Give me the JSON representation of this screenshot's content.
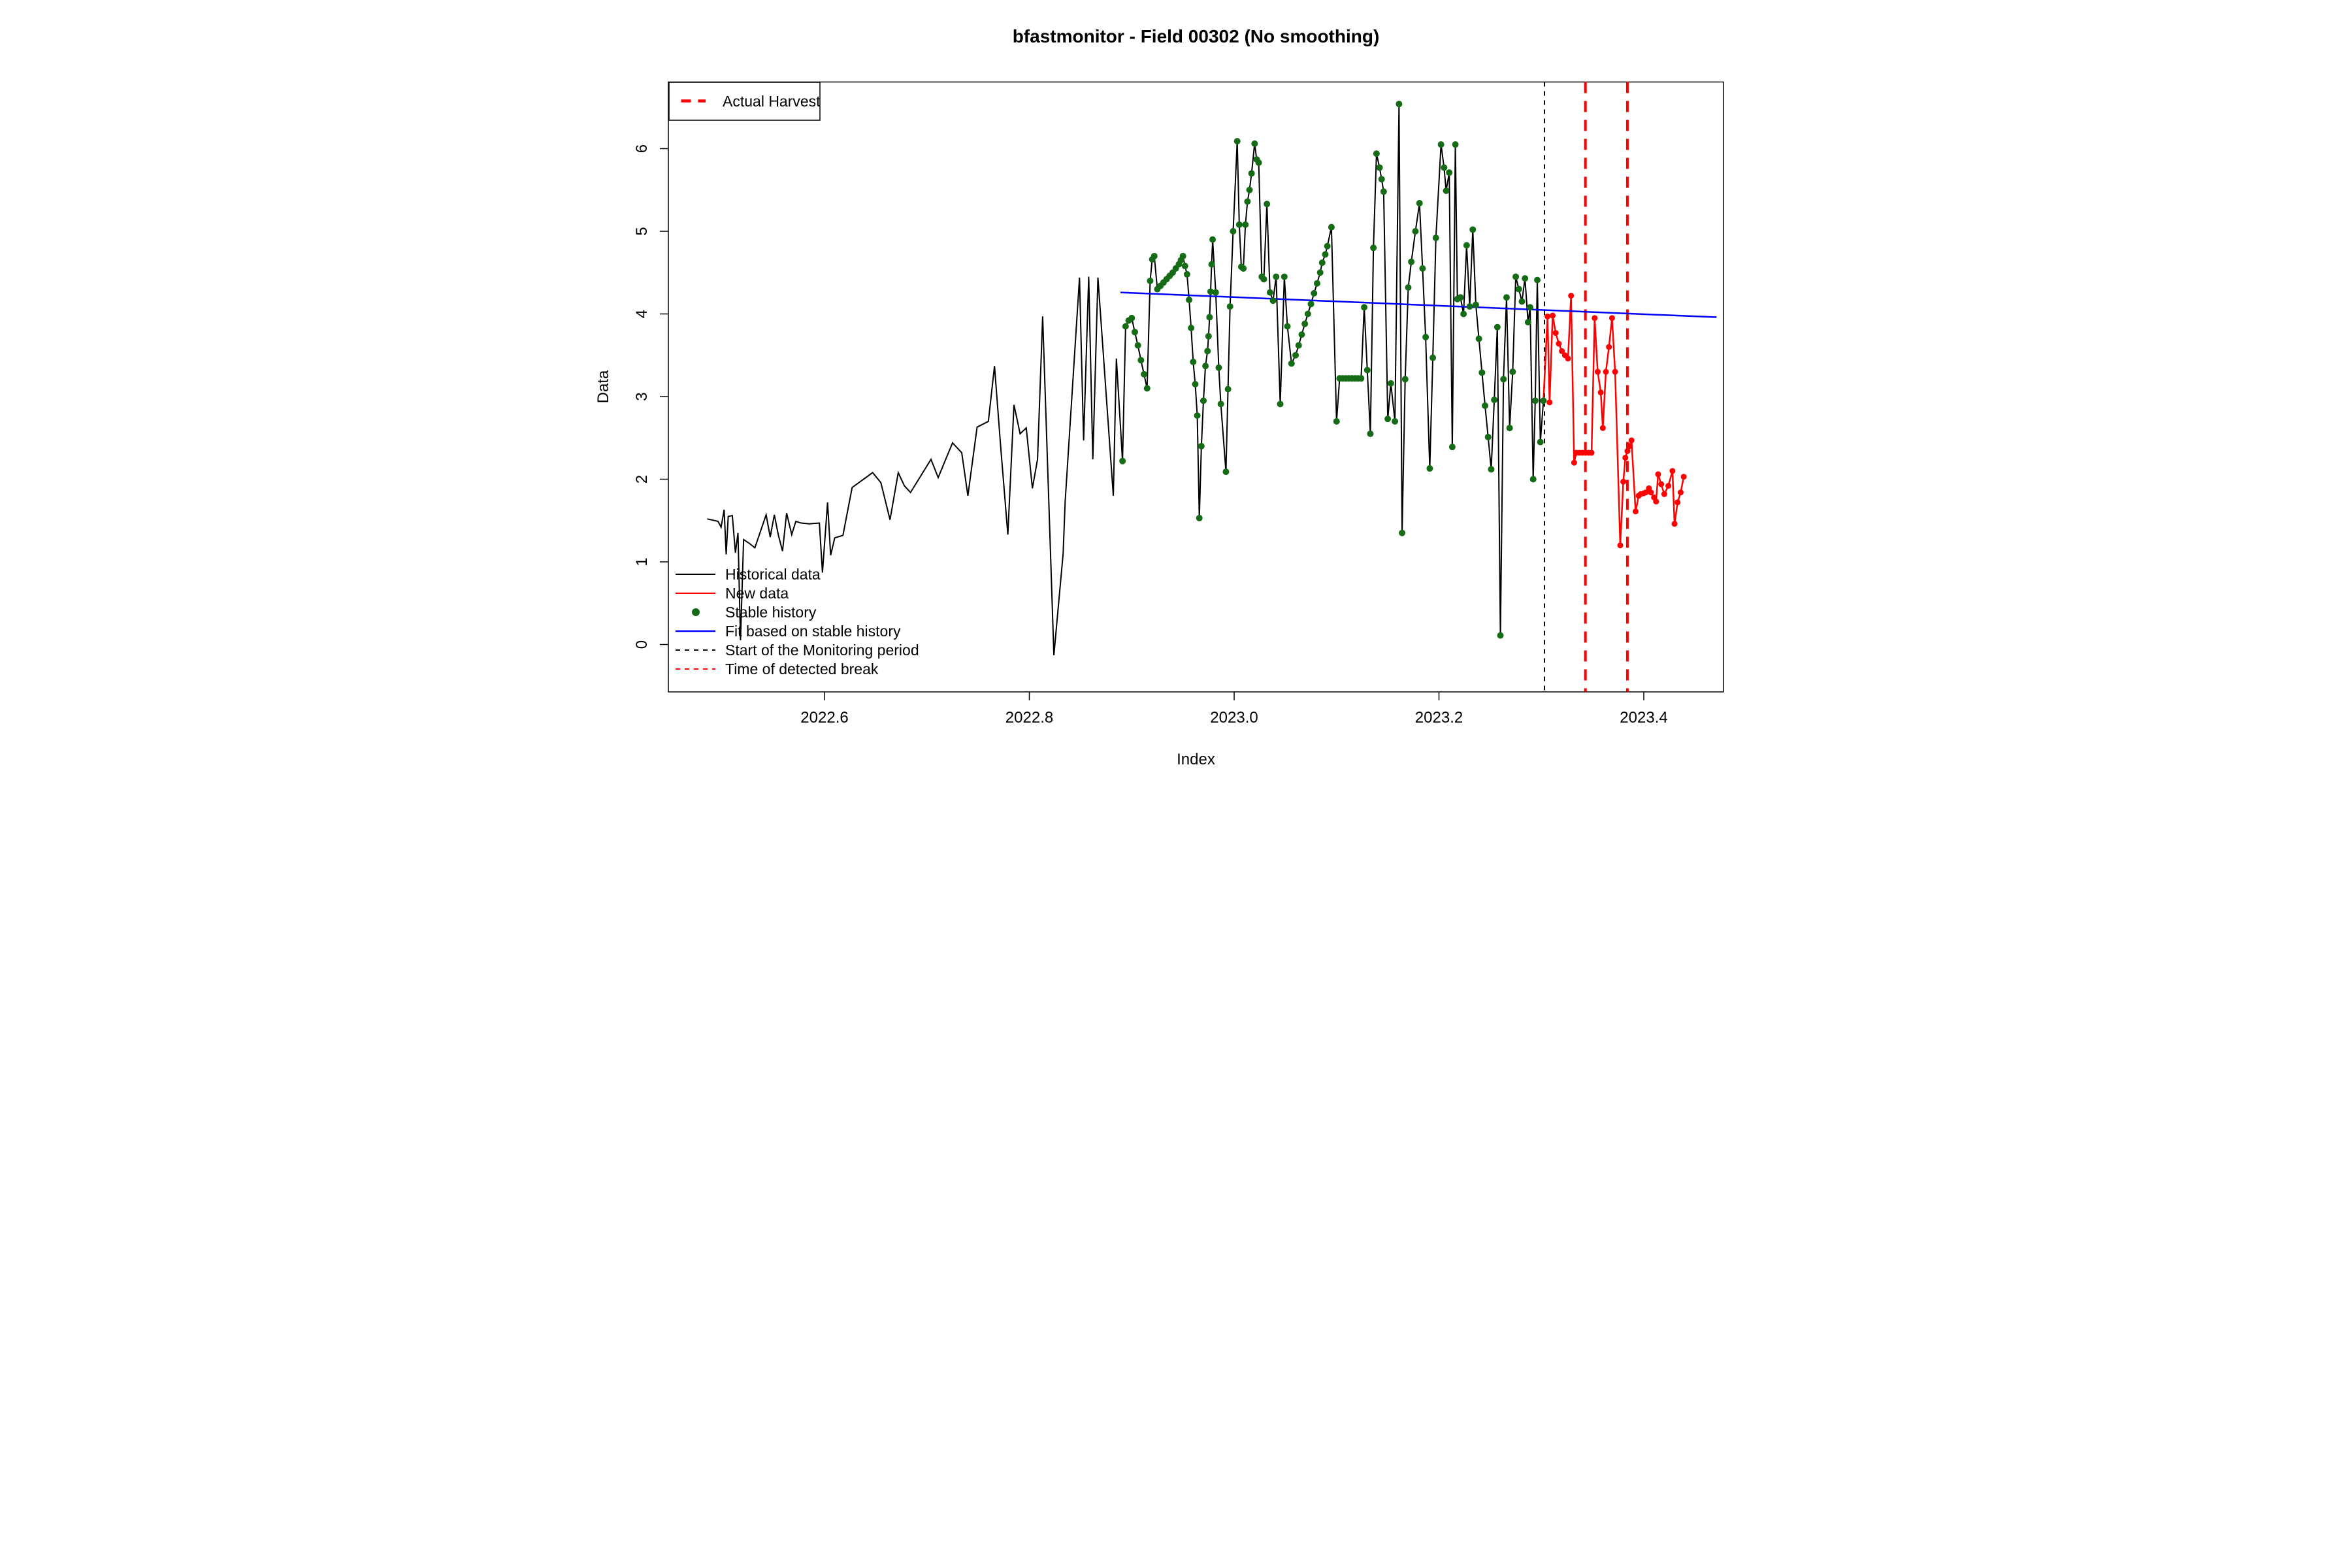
{
  "title": "bfastmonitor - Field 00302 (No smoothing)",
  "axes": {
    "x_label": "Index",
    "y_label": "Data",
    "x_ticks": [
      2022.6,
      2022.8,
      2023.0,
      2023.2,
      2023.4
    ],
    "y_ticks": [
      0,
      1,
      2,
      3,
      4,
      5,
      6
    ]
  },
  "legend_box": {
    "harvest_label": "Actual Harvest"
  },
  "legend_items": {
    "historical": "Historical data",
    "new_data": "New data",
    "stable": "Stable history",
    "fit": "Fit based on stable history",
    "monitor_start": "Start of the Monitoring period",
    "detected_break": "Time of detected break"
  },
  "colors": {
    "historical": "#000000",
    "new_data": "#FF0000",
    "stable_dot": "#166B16",
    "fit_line": "#0000FF",
    "monitor_line": "#000000",
    "break_line": "#FF0000"
  },
  "chart_data": {
    "type": "line",
    "title": "bfastmonitor - Field 00302 (No smoothing)",
    "xlabel": "Index",
    "ylabel": "Data",
    "xlim": [
      2022.447,
      2023.478
    ],
    "ylim": [
      -0.57,
      6.81
    ],
    "grid": false,
    "legend_position": "top-left and bottom-left",
    "vlines": {
      "monitoring_start": 2023.303,
      "actual_harvest": 2023.343,
      "detected_break": 2023.384
    },
    "fit_line": [
      [
        2022.889,
        4.26
      ],
      [
        2023.471,
        3.96
      ]
    ],
    "series": [
      {
        "name": "Historical data",
        "style": "line",
        "points": [
          [
            2022.4855,
            1.52
          ],
          [
            2022.496,
            1.49
          ],
          [
            2022.499,
            1.42
          ],
          [
            2022.502,
            1.63
          ],
          [
            2022.504,
            1.09
          ],
          [
            2022.506,
            1.55
          ],
          [
            2022.51,
            1.56
          ],
          [
            2022.513,
            1.11
          ],
          [
            2022.5155,
            1.35
          ],
          [
            2022.518,
            0.05
          ],
          [
            2022.521,
            1.27
          ],
          [
            2022.527,
            1.22
          ],
          [
            2022.532,
            1.17
          ],
          [
            2022.543,
            1.57
          ],
          [
            2022.547,
            1.3
          ],
          [
            2022.551,
            1.57
          ],
          [
            2022.555,
            1.32
          ],
          [
            2022.559,
            1.13
          ],
          [
            2022.563,
            1.59
          ],
          [
            2022.568,
            1.33
          ],
          [
            2022.572,
            1.49
          ],
          [
            2022.577,
            1.47
          ],
          [
            2022.585,
            1.46
          ],
          [
            2022.595,
            1.47
          ],
          [
            2022.598,
            0.87
          ],
          [
            2022.603,
            1.72
          ],
          [
            2022.606,
            1.08
          ],
          [
            2022.61,
            1.29
          ],
          [
            2022.618,
            1.32
          ],
          [
            2022.627,
            1.9
          ],
          [
            2022.647,
            2.08
          ],
          [
            2022.655,
            1.96
          ],
          [
            2022.664,
            1.51
          ],
          [
            2022.672,
            2.08
          ],
          [
            2022.678,
            1.92
          ],
          [
            2022.684,
            1.84
          ],
          [
            2022.704,
            2.24
          ],
          [
            2022.711,
            2.02
          ],
          [
            2022.725,
            2.44
          ],
          [
            2022.734,
            2.32
          ],
          [
            2022.74,
            1.8
          ],
          [
            2022.749,
            2.63
          ],
          [
            2022.76,
            2.7
          ],
          [
            2022.766,
            3.37
          ],
          [
            2022.772,
            2.4
          ],
          [
            2022.779,
            1.33
          ],
          [
            2022.785,
            2.9
          ],
          [
            2022.791,
            2.55
          ],
          [
            2022.797,
            2.62
          ],
          [
            2022.803,
            1.89
          ],
          [
            2022.808,
            2.24
          ],
          [
            2022.813,
            3.97
          ],
          [
            2022.824,
            -0.13
          ],
          [
            2022.833,
            1.1
          ],
          [
            2022.835,
            1.73
          ],
          [
            2022.849,
            4.44
          ],
          [
            2022.853,
            2.47
          ],
          [
            2022.858,
            4.45
          ],
          [
            2022.862,
            2.24
          ],
          [
            2022.867,
            4.44
          ],
          [
            2022.882,
            1.8
          ],
          [
            2022.885,
            3.46
          ]
        ]
      },
      {
        "name": "Stable history",
        "style": "line+dots",
        "points": [
          [
            2022.891,
            2.22
          ],
          [
            2022.894,
            3.85
          ],
          [
            2022.897,
            3.92
          ],
          [
            2022.9,
            3.95
          ],
          [
            2022.903,
            3.78
          ],
          [
            2022.906,
            3.62
          ],
          [
            2022.909,
            3.44
          ],
          [
            2022.912,
            3.27
          ],
          [
            2022.915,
            3.1
          ],
          [
            2022.918,
            4.4
          ],
          [
            2022.92,
            4.66
          ],
          [
            2022.922,
            4.7
          ],
          [
            2022.925,
            4.3
          ],
          [
            2022.928,
            4.34
          ],
          [
            2022.931,
            4.38
          ],
          [
            2022.934,
            4.42
          ],
          [
            2022.937,
            4.46
          ],
          [
            2022.94,
            4.5
          ],
          [
            2022.943,
            4.55
          ],
          [
            2022.946,
            4.6
          ],
          [
            2022.948,
            4.65
          ],
          [
            2022.95,
            4.7
          ],
          [
            2022.952,
            4.58
          ],
          [
            2022.954,
            4.48
          ],
          [
            2022.956,
            4.17
          ],
          [
            2022.958,
            3.83
          ],
          [
            2022.96,
            3.42
          ],
          [
            2022.962,
            3.15
          ],
          [
            2022.964,
            2.77
          ],
          [
            2022.966,
            1.53
          ],
          [
            2022.968,
            2.4
          ],
          [
            2022.97,
            2.95
          ],
          [
            2022.972,
            3.37
          ],
          [
            2022.974,
            3.55
          ],
          [
            2022.975,
            3.73
          ],
          [
            2022.976,
            3.96
          ],
          [
            2022.977,
            4.27
          ],
          [
            2022.978,
            4.6
          ],
          [
            2022.979,
            4.9
          ],
          [
            2022.982,
            4.26
          ],
          [
            2022.985,
            3.35
          ],
          [
            2022.987,
            2.91
          ],
          [
            2022.992,
            2.09
          ],
          [
            2022.994,
            3.09
          ],
          [
            2022.996,
            4.09
          ],
          [
            2022.999,
            5.0
          ],
          [
            2023.003,
            6.09
          ],
          [
            2023.005,
            5.08
          ],
          [
            2023.007,
            4.57
          ],
          [
            2023.009,
            4.55
          ],
          [
            2023.011,
            5.08
          ],
          [
            2023.013,
            5.36
          ],
          [
            2023.015,
            5.5
          ],
          [
            2023.017,
            5.7
          ],
          [
            2023.02,
            6.06
          ],
          [
            2023.022,
            5.87
          ],
          [
            2023.024,
            5.83
          ],
          [
            2023.027,
            4.45
          ],
          [
            2023.029,
            4.42
          ],
          [
            2023.032,
            5.33
          ],
          [
            2023.035,
            4.26
          ],
          [
            2023.038,
            4.16
          ],
          [
            2023.041,
            4.45
          ],
          [
            2023.045,
            2.91
          ],
          [
            2023.049,
            4.45
          ],
          [
            2023.052,
            3.85
          ],
          [
            2023.056,
            3.4
          ],
          [
            2023.06,
            3.5
          ],
          [
            2023.063,
            3.62
          ],
          [
            2023.066,
            3.75
          ],
          [
            2023.069,
            3.88
          ],
          [
            2023.072,
            4.0
          ],
          [
            2023.075,
            4.12
          ],
          [
            2023.078,
            4.25
          ],
          [
            2023.081,
            4.37
          ],
          [
            2023.084,
            4.5
          ],
          [
            2023.086,
            4.62
          ],
          [
            2023.089,
            4.72
          ],
          [
            2023.091,
            4.82
          ],
          [
            2023.095,
            5.05
          ],
          [
            2023.1,
            2.7
          ],
          [
            2023.103,
            3.22
          ],
          [
            2023.106,
            3.22
          ],
          [
            2023.109,
            3.22
          ],
          [
            2023.112,
            3.22
          ],
          [
            2023.115,
            3.22
          ],
          [
            2023.118,
            3.22
          ],
          [
            2023.121,
            3.22
          ],
          [
            2023.124,
            3.22
          ],
          [
            2023.127,
            4.08
          ],
          [
            2023.13,
            3.32
          ],
          [
            2023.133,
            2.55
          ],
          [
            2023.136,
            4.8
          ],
          [
            2023.139,
            5.94
          ],
          [
            2023.142,
            5.77
          ],
          [
            2023.144,
            5.63
          ],
          [
            2023.146,
            5.48
          ],
          [
            2023.15,
            2.73
          ],
          [
            2023.153,
            3.16
          ],
          [
            2023.157,
            2.7
          ],
          [
            2023.161,
            6.54
          ],
          [
            2023.164,
            1.35
          ],
          [
            2023.167,
            3.21
          ],
          [
            2023.17,
            4.32
          ],
          [
            2023.173,
            4.63
          ],
          [
            2023.177,
            5.0
          ],
          [
            2023.181,
            5.34
          ],
          [
            2023.184,
            4.55
          ],
          [
            2023.187,
            3.72
          ],
          [
            2023.191,
            2.13
          ],
          [
            2023.194,
            3.47
          ],
          [
            2023.197,
            4.92
          ],
          [
            2023.202,
            6.05
          ],
          [
            2023.205,
            5.77
          ],
          [
            2023.207,
            5.49
          ],
          [
            2023.21,
            5.71
          ],
          [
            2023.213,
            2.39
          ],
          [
            2023.216,
            6.05
          ],
          [
            2023.218,
            4.18
          ],
          [
            2023.221,
            4.2
          ],
          [
            2023.224,
            4.0
          ],
          [
            2023.227,
            4.83
          ],
          [
            2023.23,
            4.09
          ],
          [
            2023.233,
            5.02
          ],
          [
            2023.236,
            4.11
          ],
          [
            2023.239,
            3.7
          ],
          [
            2023.242,
            3.29
          ],
          [
            2023.245,
            2.89
          ],
          [
            2023.248,
            2.51
          ],
          [
            2023.251,
            2.12
          ],
          [
            2023.254,
            2.96
          ],
          [
            2023.257,
            3.84
          ],
          [
            2023.26,
            0.11
          ],
          [
            2023.263,
            3.21
          ],
          [
            2023.266,
            4.2
          ],
          [
            2023.269,
            2.62
          ],
          [
            2023.272,
            3.3
          ],
          [
            2023.275,
            4.45
          ],
          [
            2023.278,
            4.3
          ],
          [
            2023.281,
            4.15
          ],
          [
            2023.284,
            4.43
          ],
          [
            2023.287,
            3.9
          ],
          [
            2023.289,
            4.08
          ],
          [
            2023.292,
            2.0
          ],
          [
            2023.294,
            2.95
          ],
          [
            2023.296,
            4.41
          ],
          [
            2023.299,
            2.45
          ],
          [
            2023.302,
            2.95
          ]
        ]
      },
      {
        "name": "New data",
        "style": "line+dots",
        "points": [
          [
            2023.306,
            3.97
          ],
          [
            2023.308,
            2.93
          ],
          [
            2023.311,
            3.98
          ],
          [
            2023.314,
            3.77
          ],
          [
            2023.317,
            3.64
          ],
          [
            2023.32,
            3.55
          ],
          [
            2023.323,
            3.5
          ],
          [
            2023.326,
            3.46
          ],
          [
            2023.329,
            4.22
          ],
          [
            2023.332,
            2.2
          ],
          [
            2023.334,
            2.32
          ],
          [
            2023.337,
            2.32
          ],
          [
            2023.34,
            2.32
          ],
          [
            2023.343,
            2.32
          ],
          [
            2023.346,
            2.32
          ],
          [
            2023.349,
            2.32
          ],
          [
            2023.352,
            3.95
          ],
          [
            2023.355,
            3.3
          ],
          [
            2023.358,
            3.05
          ],
          [
            2023.36,
            2.62
          ],
          [
            2023.363,
            3.3
          ],
          [
            2023.366,
            3.6
          ],
          [
            2023.369,
            3.95
          ],
          [
            2023.372,
            3.3
          ],
          [
            2023.377,
            1.2
          ],
          [
            2023.38,
            1.97
          ],
          [
            2023.382,
            2.26
          ],
          [
            2023.384,
            2.34
          ],
          [
            2023.386,
            2.4
          ],
          [
            2023.388,
            2.47
          ],
          [
            2023.392,
            1.61
          ],
          [
            2023.395,
            1.8
          ],
          [
            2023.397,
            1.82
          ],
          [
            2023.4,
            1.83
          ],
          [
            2023.402,
            1.84
          ],
          [
            2023.405,
            1.89
          ],
          [
            2023.407,
            1.84
          ],
          [
            2023.41,
            1.78
          ],
          [
            2023.412,
            1.73
          ],
          [
            2023.414,
            2.06
          ],
          [
            2023.417,
            1.94
          ],
          [
            2023.42,
            1.82
          ],
          [
            2023.424,
            1.92
          ],
          [
            2023.428,
            2.1
          ],
          [
            2023.43,
            1.46
          ],
          [
            2023.433,
            1.72
          ],
          [
            2023.436,
            1.84
          ],
          [
            2023.439,
            2.03
          ]
        ]
      }
    ]
  }
}
